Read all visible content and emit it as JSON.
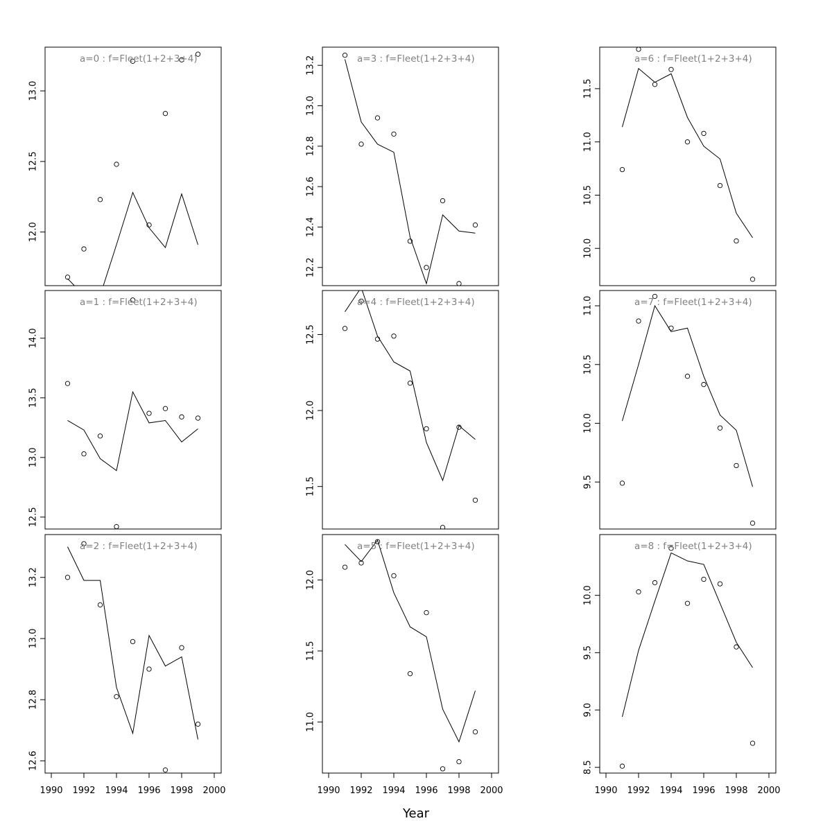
{
  "chart_data": {
    "type": "line",
    "xlabel": "Year",
    "xlim": [
      1990,
      2000
    ],
    "xticks": [
      1990,
      1992,
      1994,
      1996,
      1998,
      2000
    ],
    "x": [
      1991,
      1992,
      1993,
      1994,
      1995,
      1996,
      1997,
      1998,
      1999
    ],
    "panels": [
      {
        "title": "a=0 : f=Fleet(1+2+3+4)",
        "ylim": [
          11.62,
          13.31
        ],
        "yticks": [
          12.0,
          12.5,
          13.0
        ],
        "observed": [
          11.68,
          11.88,
          12.23,
          12.48,
          13.21,
          12.05,
          12.84,
          13.22,
          13.26
        ],
        "fitted": [
          11.67,
          11.55,
          11.55,
          11.91,
          12.28,
          12.03,
          11.89,
          12.27,
          11.91
        ]
      },
      {
        "title": "a=3 : f=Fleet(1+2+3+4)",
        "ylim": [
          12.11,
          13.29
        ],
        "yticks": [
          12.2,
          12.4,
          12.6,
          12.8,
          13.0,
          13.2
        ],
        "observed": [
          13.25,
          12.81,
          12.94,
          12.86,
          12.33,
          12.2,
          12.53,
          12.12,
          12.41
        ],
        "fitted": [
          13.23,
          12.92,
          12.81,
          12.77,
          12.35,
          12.12,
          12.46,
          12.38,
          12.37
        ]
      },
      {
        "title": "a=6 : f=Fleet(1+2+3+4)",
        "ylim": [
          9.65,
          11.89
        ],
        "yticks": [
          10.0,
          10.5,
          11.0,
          11.5
        ],
        "observed": [
          10.74,
          11.87,
          11.54,
          11.68,
          11.0,
          11.08,
          10.59,
          10.07,
          9.71
        ],
        "fitted": [
          11.14,
          11.69,
          11.56,
          11.64,
          11.23,
          10.96,
          10.84,
          10.33,
          10.1
        ]
      },
      {
        "title": "a=1 : f=Fleet(1+2+3+4)",
        "ylim": [
          12.4,
          14.4
        ],
        "yticks": [
          12.5,
          13.0,
          13.5,
          14.0
        ],
        "observed": [
          13.62,
          13.03,
          13.18,
          12.42,
          14.32,
          13.37,
          13.41,
          13.34,
          13.33
        ],
        "fitted": [
          13.31,
          13.23,
          12.99,
          12.89,
          13.55,
          13.29,
          13.31,
          13.13,
          13.24
        ]
      },
      {
        "title": "a=4 : f=Fleet(1+2+3+4)",
        "ylim": [
          11.22,
          12.79
        ],
        "yticks": [
          11.5,
          12.0,
          12.5
        ],
        "observed": [
          12.54,
          12.72,
          12.47,
          12.49,
          12.18,
          11.88,
          11.23,
          11.89,
          11.41
        ],
        "fitted": [
          12.65,
          12.81,
          12.49,
          12.32,
          12.26,
          11.79,
          11.54,
          11.9,
          11.81
        ]
      },
      {
        "title": "a=7 : f=Fleet(1+2+3+4)",
        "ylim": [
          9.1,
          11.13
        ],
        "yticks": [
          9.5,
          10.0,
          10.5,
          11.0
        ],
        "observed": [
          9.49,
          10.87,
          11.08,
          10.81,
          10.4,
          10.33,
          9.96,
          9.64,
          9.15
        ],
        "fitted": [
          10.02,
          10.5,
          11.0,
          10.78,
          10.81,
          10.4,
          10.07,
          9.94,
          9.46
        ]
      },
      {
        "title": "a=2 : f=Fleet(1+2+3+4)",
        "ylim": [
          12.56,
          13.34
        ],
        "yticks": [
          12.6,
          12.8,
          13.0,
          13.2
        ],
        "observed": [
          13.2,
          13.31,
          13.11,
          12.81,
          12.99,
          12.9,
          12.57,
          12.97,
          12.72
        ],
        "fitted": [
          13.3,
          13.19,
          13.19,
          12.84,
          12.69,
          13.01,
          12.91,
          12.94,
          12.67
        ]
      },
      {
        "title": "a=5 : f=Fleet(1+2+3+4)",
        "ylim": [
          10.64,
          12.32
        ],
        "yticks": [
          11.0,
          11.5,
          12.0
        ],
        "observed": [
          12.09,
          12.12,
          12.27,
          12.03,
          11.34,
          11.77,
          10.67,
          10.72,
          10.93
        ],
        "fitted": [
          12.25,
          12.13,
          12.28,
          11.91,
          11.67,
          11.6,
          11.09,
          10.86,
          11.22
        ]
      },
      {
        "title": "a=8 : f=Fleet(1+2+3+4)",
        "ylim": [
          8.45,
          10.53
        ],
        "yticks": [
          8.5,
          9.0,
          9.5,
          10.0
        ],
        "observed": [
          8.51,
          10.03,
          10.11,
          10.41,
          9.93,
          10.14,
          10.1,
          9.55,
          8.71
        ],
        "fitted": [
          8.94,
          9.52,
          9.95,
          10.37,
          10.3,
          10.27,
          9.93,
          9.59,
          9.37
        ]
      }
    ]
  }
}
